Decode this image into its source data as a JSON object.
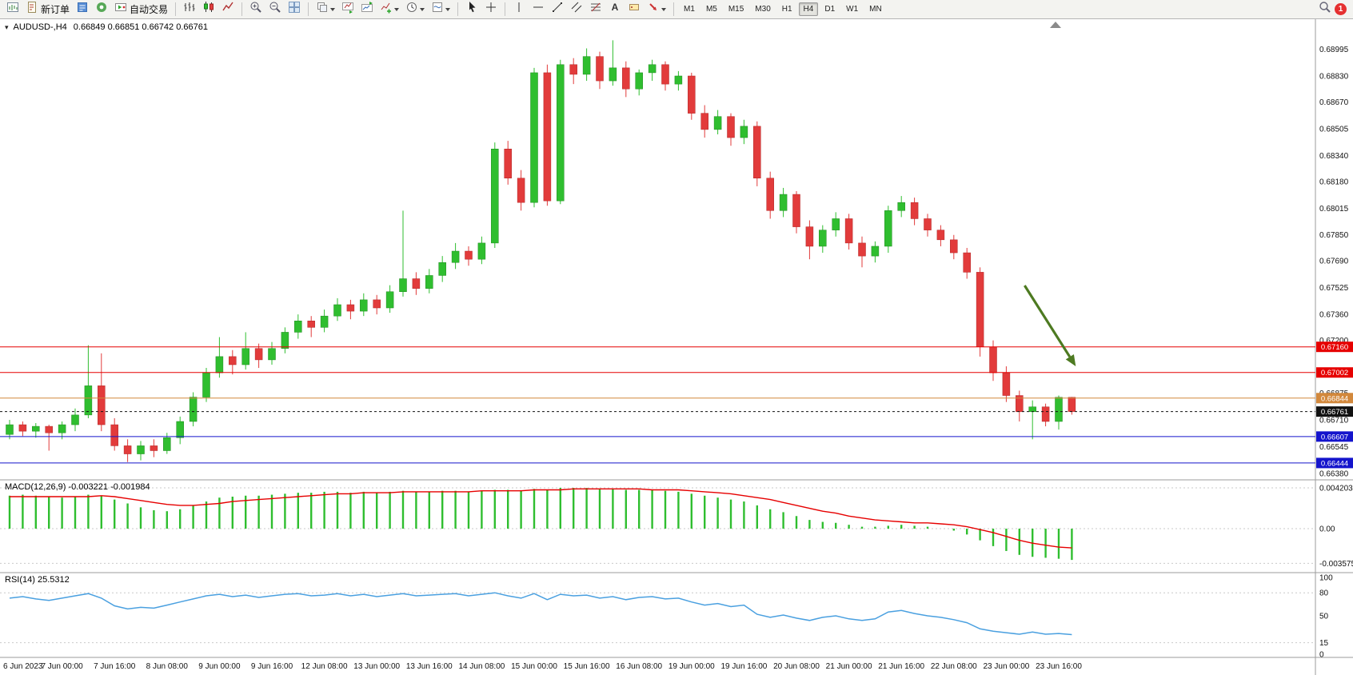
{
  "toolbar": {
    "new_order_label": "新订单",
    "autotrading_label": "自动交易",
    "timeframes": [
      "M1",
      "M5",
      "M15",
      "M30",
      "H1",
      "H4",
      "D1",
      "W1",
      "MN"
    ],
    "active_timeframe": "H4",
    "notification_count": "1"
  },
  "chart": {
    "title": "AUDUSD-,H4",
    "ohlc": "0.66849 0.66851 0.66742 0.66761",
    "macd_label": "MACD(12,26,9) -0.003221 -0.001984",
    "rsi_label": "RSI(14) 25.5312"
  },
  "chart_data": {
    "type": "candlestick",
    "symbol": "AUDUSD-",
    "timeframe": "H4",
    "ohlc_current": {
      "open": 0.66849,
      "high": 0.66851,
      "low": 0.66742,
      "close": 0.66761
    },
    "ylim": [
      0.6634,
      0.6918
    ],
    "price_ticks": [
      0.68995,
      0.6883,
      0.6867,
      0.68505,
      0.6834,
      0.6818,
      0.68015,
      0.6785,
      0.6769,
      0.67525,
      0.6736,
      0.672,
      0.66875,
      0.6671,
      0.66545,
      0.6638
    ],
    "time_labels": [
      "6 Jun 2023",
      "7 Jun 00:00",
      "7 Jun 16:00",
      "8 Jun 08:00",
      "9 Jun 00:00",
      "9 Jun 16:00",
      "12 Jun 08:00",
      "13 Jun 00:00",
      "13 Jun 16:00",
      "14 Jun 08:00",
      "15 Jun 00:00",
      "15 Jun 16:00",
      "16 Jun 08:00",
      "19 Jun 00:00",
      "19 Jun 16:00",
      "20 Jun 08:00",
      "21 Jun 00:00",
      "21 Jun 16:00",
      "22 Jun 08:00",
      "23 Jun 00:00",
      "23 Jun 16:00"
    ],
    "candles": [
      [
        0.6662,
        0.6671,
        0.6659,
        0.6668
      ],
      [
        0.6668,
        0.667,
        0.6661,
        0.6664
      ],
      [
        0.6664,
        0.6669,
        0.666,
        0.6667
      ],
      [
        0.6667,
        0.6668,
        0.6652,
        0.6663
      ],
      [
        0.6663,
        0.667,
        0.6659,
        0.6668
      ],
      [
        0.6668,
        0.6678,
        0.6664,
        0.6674
      ],
      [
        0.6674,
        0.6717,
        0.6672,
        0.6692
      ],
      [
        0.6692,
        0.6712,
        0.6664,
        0.6668
      ],
      [
        0.6668,
        0.6672,
        0.6652,
        0.6655
      ],
      [
        0.6655,
        0.6659,
        0.6645,
        0.665
      ],
      [
        0.665,
        0.6658,
        0.6646,
        0.6655
      ],
      [
        0.6655,
        0.6659,
        0.6648,
        0.6652
      ],
      [
        0.6652,
        0.6663,
        0.665,
        0.666
      ],
      [
        0.666,
        0.6673,
        0.6656,
        0.667
      ],
      [
        0.667,
        0.6688,
        0.6667,
        0.6685
      ],
      [
        0.6685,
        0.6703,
        0.6682,
        0.67
      ],
      [
        0.67,
        0.6722,
        0.6697,
        0.671
      ],
      [
        0.671,
        0.6714,
        0.6699,
        0.6705
      ],
      [
        0.6705,
        0.6725,
        0.6702,
        0.6715
      ],
      [
        0.6715,
        0.6718,
        0.6703,
        0.6708
      ],
      [
        0.6708,
        0.6719,
        0.6705,
        0.6715
      ],
      [
        0.6715,
        0.6728,
        0.6712,
        0.6725
      ],
      [
        0.6725,
        0.6736,
        0.6721,
        0.6732
      ],
      [
        0.6732,
        0.6735,
        0.6722,
        0.6728
      ],
      [
        0.6728,
        0.6739,
        0.6725,
        0.6735
      ],
      [
        0.6735,
        0.6746,
        0.6732,
        0.6742
      ],
      [
        0.6742,
        0.6745,
        0.6733,
        0.6738
      ],
      [
        0.6738,
        0.6749,
        0.6735,
        0.6745
      ],
      [
        0.6745,
        0.6748,
        0.6736,
        0.674
      ],
      [
        0.674,
        0.6754,
        0.6737,
        0.675
      ],
      [
        0.675,
        0.68,
        0.6747,
        0.6758
      ],
      [
        0.6758,
        0.6762,
        0.6748,
        0.6752
      ],
      [
        0.6752,
        0.6764,
        0.6749,
        0.676
      ],
      [
        0.676,
        0.6772,
        0.6756,
        0.6768
      ],
      [
        0.6768,
        0.678,
        0.6764,
        0.6775
      ],
      [
        0.6775,
        0.6778,
        0.6766,
        0.677
      ],
      [
        0.677,
        0.6784,
        0.6767,
        0.678
      ],
      [
        0.678,
        0.6842,
        0.6777,
        0.6838
      ],
      [
        0.6838,
        0.6843,
        0.6816,
        0.682
      ],
      [
        0.682,
        0.6825,
        0.68,
        0.6805
      ],
      [
        0.6805,
        0.6888,
        0.6802,
        0.6885
      ],
      [
        0.6885,
        0.689,
        0.6803,
        0.6806
      ],
      [
        0.6806,
        0.6893,
        0.6804,
        0.689
      ],
      [
        0.689,
        0.6894,
        0.6878,
        0.6884
      ],
      [
        0.6884,
        0.69,
        0.688,
        0.6895
      ],
      [
        0.6895,
        0.6898,
        0.6875,
        0.688
      ],
      [
        0.688,
        0.6905,
        0.6877,
        0.6888
      ],
      [
        0.6888,
        0.6892,
        0.687,
        0.6875
      ],
      [
        0.6875,
        0.6887,
        0.6871,
        0.6885
      ],
      [
        0.6885,
        0.6893,
        0.688,
        0.689
      ],
      [
        0.689,
        0.6892,
        0.6874,
        0.6878
      ],
      [
        0.6878,
        0.6886,
        0.6874,
        0.6883
      ],
      [
        0.6883,
        0.6885,
        0.6856,
        0.686
      ],
      [
        0.686,
        0.6865,
        0.6845,
        0.685
      ],
      [
        0.685,
        0.6862,
        0.6847,
        0.6858
      ],
      [
        0.6858,
        0.686,
        0.684,
        0.6845
      ],
      [
        0.6845,
        0.6856,
        0.6841,
        0.6852
      ],
      [
        0.6852,
        0.6855,
        0.6815,
        0.682
      ],
      [
        0.682,
        0.6824,
        0.6795,
        0.68
      ],
      [
        0.68,
        0.6814,
        0.6796,
        0.681
      ],
      [
        0.681,
        0.6812,
        0.6786,
        0.679
      ],
      [
        0.679,
        0.6794,
        0.677,
        0.6778
      ],
      [
        0.6778,
        0.6791,
        0.6774,
        0.6788
      ],
      [
        0.6788,
        0.6799,
        0.6784,
        0.6795
      ],
      [
        0.6795,
        0.6798,
        0.6776,
        0.678
      ],
      [
        0.678,
        0.6784,
        0.6765,
        0.6772
      ],
      [
        0.6772,
        0.6781,
        0.6768,
        0.6778
      ],
      [
        0.6778,
        0.6803,
        0.6774,
        0.68
      ],
      [
        0.68,
        0.6809,
        0.6796,
        0.6805
      ],
      [
        0.6805,
        0.6808,
        0.6791,
        0.6795
      ],
      [
        0.6795,
        0.6798,
        0.6784,
        0.6788
      ],
      [
        0.6788,
        0.6791,
        0.6778,
        0.6782
      ],
      [
        0.6782,
        0.6785,
        0.677,
        0.6774
      ],
      [
        0.6774,
        0.6777,
        0.6758,
        0.6762
      ],
      [
        0.6762,
        0.6765,
        0.671,
        0.6716
      ],
      [
        0.6716,
        0.672,
        0.6695,
        0.67
      ],
      [
        0.67,
        0.6704,
        0.6682,
        0.6686
      ],
      [
        0.6686,
        0.6689,
        0.667,
        0.6676
      ],
      [
        0.6676,
        0.6683,
        0.6659,
        0.6679
      ],
      [
        0.6679,
        0.6681,
        0.6667,
        0.667
      ],
      [
        0.667,
        0.6686,
        0.6665,
        0.66849
      ],
      [
        0.66849,
        0.66851,
        0.66742,
        0.66761
      ]
    ],
    "levels": [
      {
        "price": 0.6716,
        "label": "0.67160",
        "color": "#e60000",
        "style": "solid"
      },
      {
        "price": 0.67002,
        "label": "0.67002",
        "color": "#e60000",
        "style": "solid"
      },
      {
        "price": 0.66844,
        "label": "0.66844",
        "color": "#d2883c",
        "style": "solid"
      },
      {
        "price": 0.66761,
        "label": "0.66761",
        "color": "#111111",
        "style": "dashed",
        "role": "current-price"
      },
      {
        "price": 0.66607,
        "label": "0.66607",
        "color": "#1414cc",
        "style": "solid"
      },
      {
        "price": 0.66444,
        "label": "0.66444",
        "color": "#1414cc",
        "style": "solid"
      }
    ],
    "annotation_arrow": {
      "from_bar": 77.4,
      "from_price": 0.67538,
      "to_bar": 81.3,
      "to_price": 0.6704,
      "color": "#4d7a21"
    },
    "indicators": {
      "macd": {
        "label": "MACD(12,26,9)",
        "main_value": -0.003221,
        "signal_value": -0.001984,
        "ylim": [
          -0.00453,
          0.00503
        ],
        "axis_values": [
          0.004203,
          0,
          -0.003575
        ],
        "axis_labels": [
          "0.004203",
          "0.00",
          "-0.003575"
        ],
        "histogram": [
          0.0034,
          0.0035,
          0.0034,
          0.0033,
          0.0032,
          0.0033,
          0.0035,
          0.0034,
          0.003,
          0.0026,
          0.0022,
          0.0019,
          0.0018,
          0.002,
          0.0024,
          0.0028,
          0.0032,
          0.0033,
          0.0034,
          0.0034,
          0.0035,
          0.0036,
          0.0037,
          0.0037,
          0.0038,
          0.0038,
          0.0037,
          0.0038,
          0.0037,
          0.0038,
          0.0039,
          0.0038,
          0.0038,
          0.0039,
          0.0039,
          0.0038,
          0.0039,
          0.004,
          0.004,
          0.0039,
          0.0041,
          0.004,
          0.0042,
          0.0042,
          0.0042,
          0.0041,
          0.0041,
          0.004,
          0.004,
          0.004,
          0.0039,
          0.0038,
          0.0036,
          0.0034,
          0.0032,
          0.003,
          0.0028,
          0.0024,
          0.002,
          0.0017,
          0.0013,
          0.0009,
          0.0007,
          0.0006,
          0.0004,
          0.0002,
          0.0002,
          0.0003,
          0.0004,
          0.0003,
          0.0002,
          0.0,
          -0.0002,
          -0.0006,
          -0.0012,
          -0.0018,
          -0.0023,
          -0.0027,
          -0.0029,
          -0.003,
          -0.0031,
          -0.003221
        ],
        "signal": [
          0.0033,
          0.0033,
          0.0033,
          0.0033,
          0.0033,
          0.0033,
          0.0033,
          0.0034,
          0.0033,
          0.0031,
          0.0029,
          0.0027,
          0.0025,
          0.0024,
          0.0024,
          0.0025,
          0.0026,
          0.0028,
          0.0029,
          0.003,
          0.0031,
          0.0032,
          0.0033,
          0.0034,
          0.0035,
          0.0036,
          0.0036,
          0.0037,
          0.0037,
          0.0037,
          0.0038,
          0.0038,
          0.0038,
          0.0038,
          0.0038,
          0.0038,
          0.0039,
          0.0039,
          0.0039,
          0.0039,
          0.004,
          0.004,
          0.004,
          0.0041,
          0.0041,
          0.0041,
          0.0041,
          0.0041,
          0.0041,
          0.004,
          0.004,
          0.004,
          0.0039,
          0.0038,
          0.0037,
          0.0036,
          0.0034,
          0.0032,
          0.003,
          0.0027,
          0.0024,
          0.0021,
          0.0018,
          0.0016,
          0.0013,
          0.0011,
          0.0009,
          0.0008,
          0.0007,
          0.0006,
          0.0006,
          0.0005,
          0.0004,
          0.0002,
          -0.0001,
          -0.0004,
          -0.0008,
          -0.0012,
          -0.0015,
          -0.0017,
          -0.0019,
          -0.001984
        ]
      },
      "rsi": {
        "label": "RSI(14)",
        "value": 25.5312,
        "axis_values": [
          100,
          80,
          50,
          15,
          0
        ],
        "axis_labels": [
          "100",
          "80",
          "50",
          "15",
          "0"
        ],
        "level_lines": [
          80,
          15
        ],
        "series": [
          73,
          75,
          72,
          70,
          73,
          76,
          79,
          73,
          63,
          59,
          61,
          60,
          64,
          68,
          72,
          76,
          78,
          75,
          77,
          74,
          76,
          78,
          79,
          76,
          77,
          79,
          76,
          78,
          75,
          77,
          79,
          76,
          77,
          78,
          79,
          76,
          78,
          80,
          76,
          73,
          79,
          71,
          78,
          76,
          77,
          73,
          75,
          71,
          74,
          75,
          72,
          73,
          68,
          64,
          66,
          62,
          64,
          52,
          48,
          51,
          47,
          44,
          48,
          50,
          46,
          44,
          46,
          55,
          57,
          53,
          50,
          48,
          45,
          41,
          33,
          30,
          28,
          26,
          29,
          26,
          27,
          25.5312
        ]
      }
    }
  },
  "colors": {
    "bull": "#2fbe2f",
    "bear": "#e23b3b",
    "macd_histogram": "#2fbe2f",
    "macd_signal": "#e60000",
    "rsi_line": "#4aa0e0",
    "arrow": "#4d7a21",
    "level_red": "#e60000",
    "level_orange": "#d2883c",
    "level_blue": "#1414cc",
    "background": "#ffffff"
  }
}
